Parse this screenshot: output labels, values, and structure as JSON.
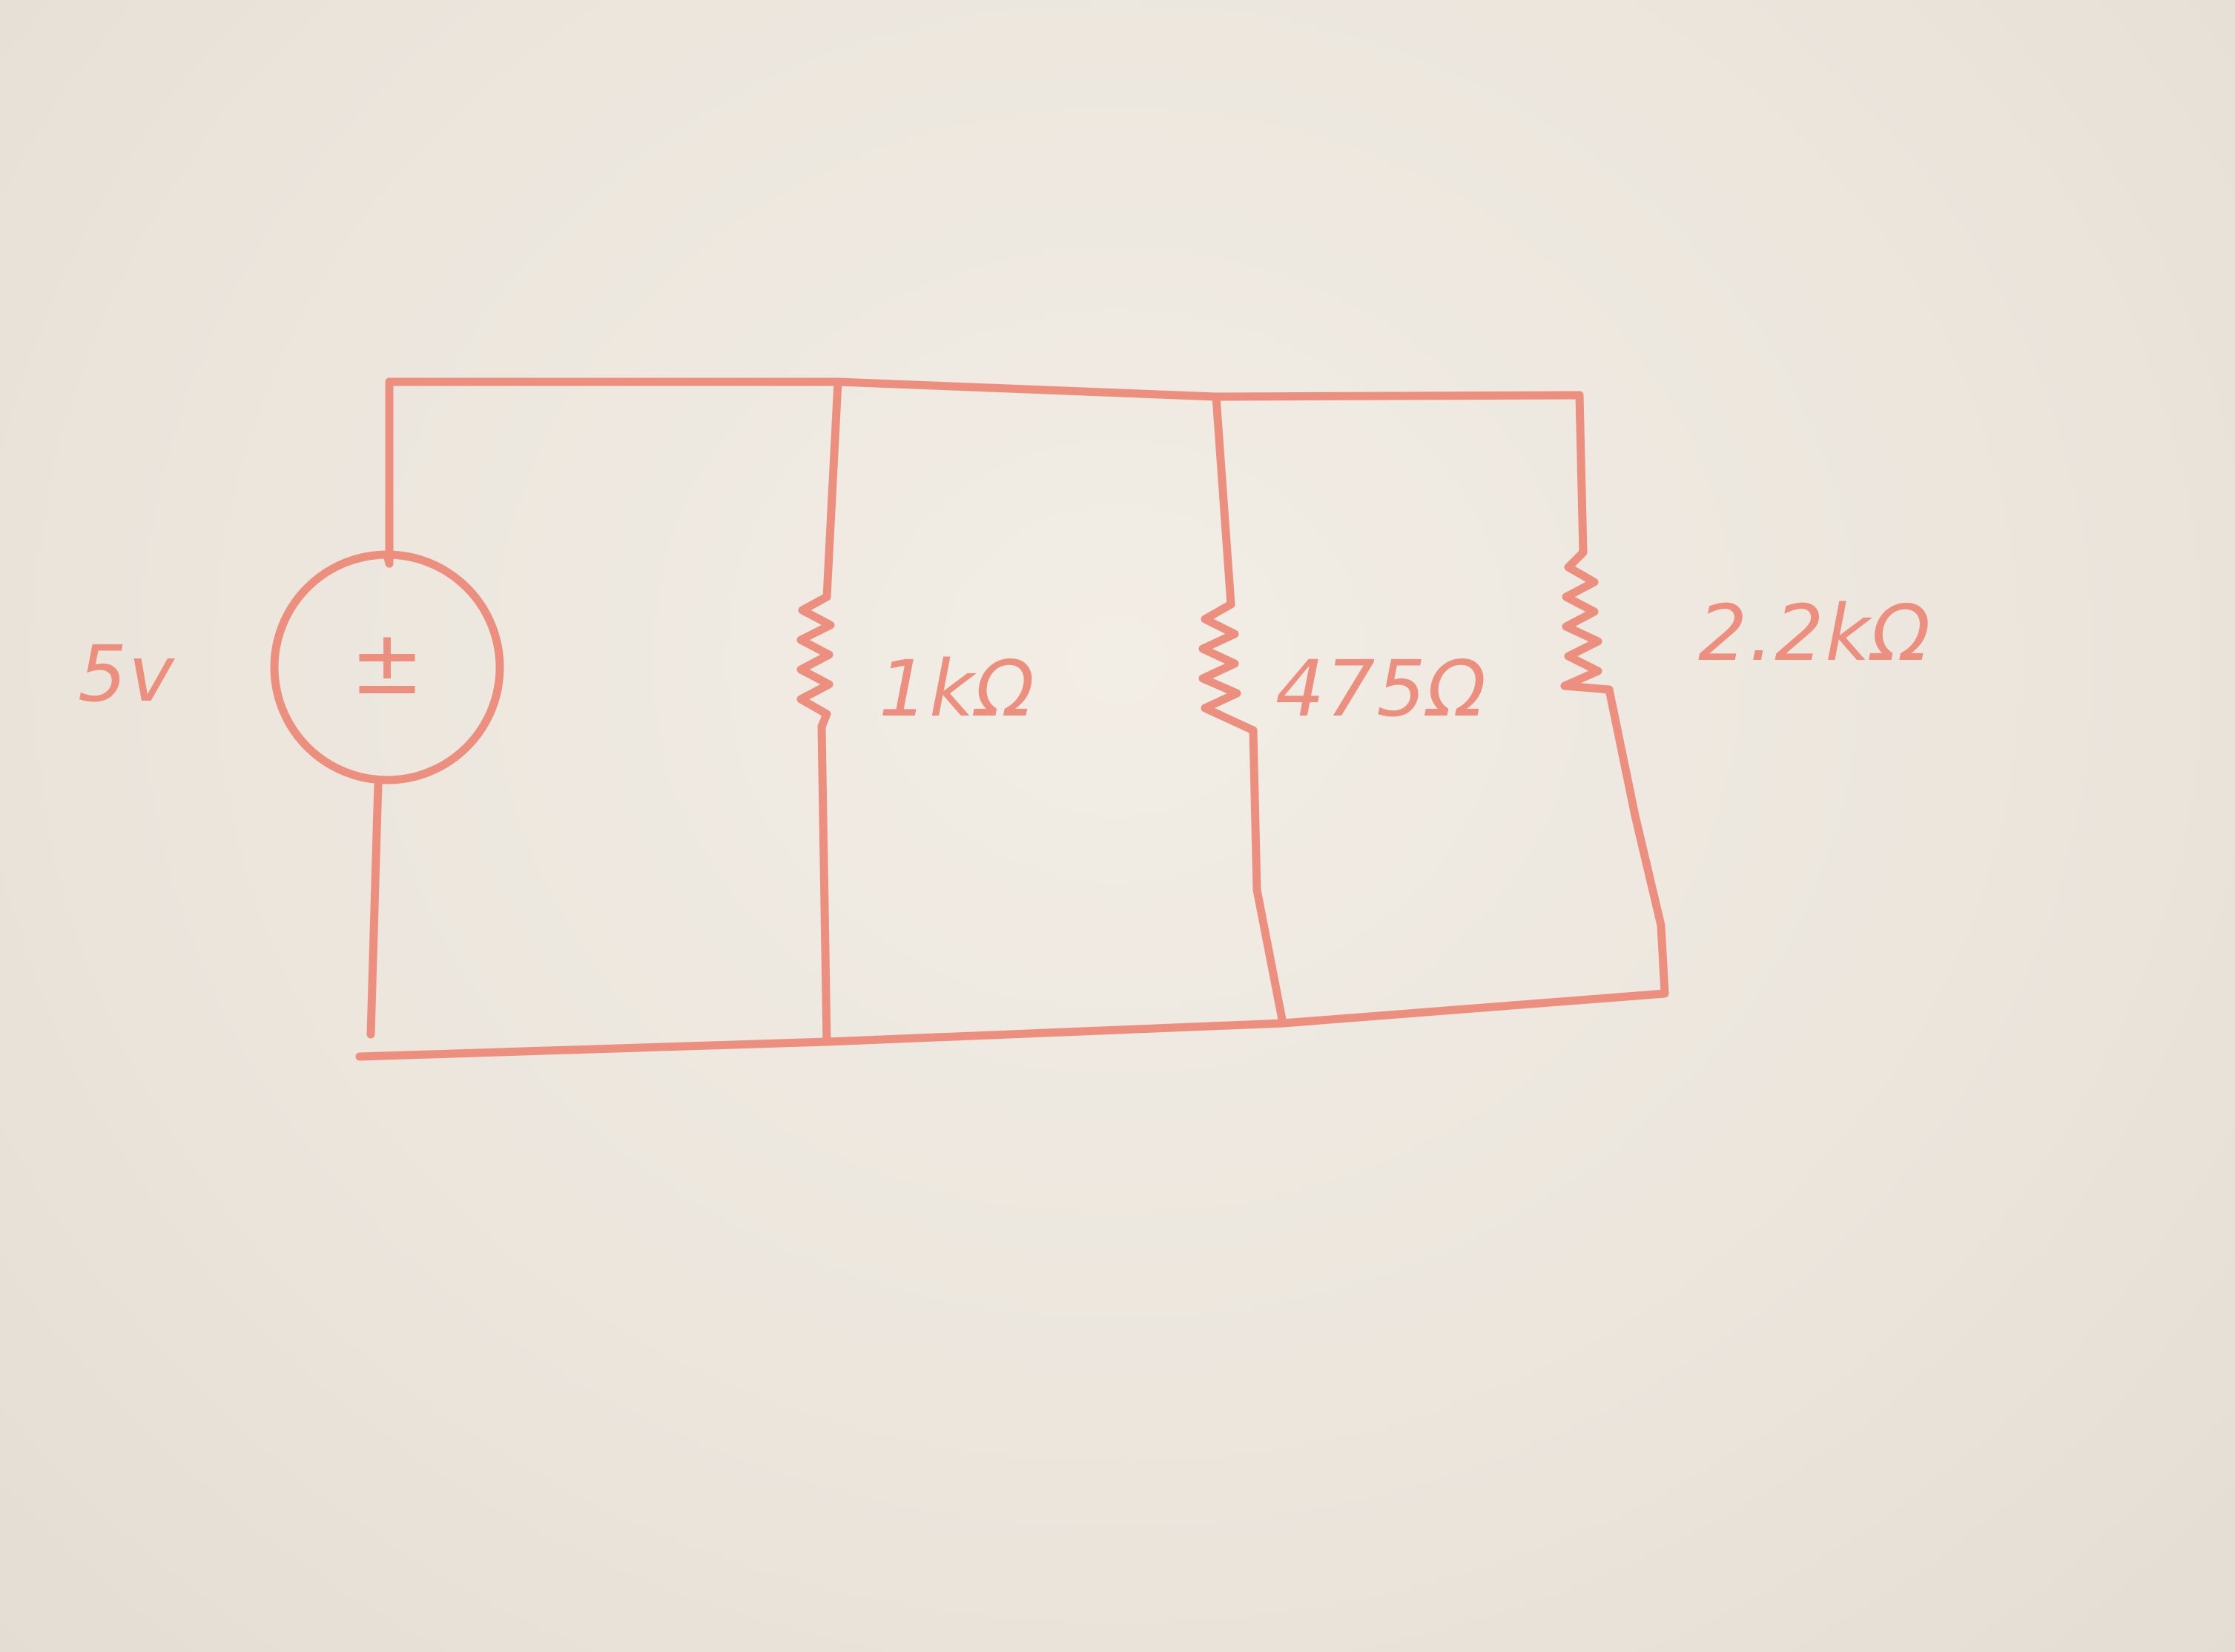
{
  "ink_color": "#ec8f7f",
  "source": {
    "label": "5v",
    "polarity_symbol": "±",
    "icon": "voltage-source-icon"
  },
  "resistors": [
    {
      "label": "1kΩ",
      "icon": "resistor-icon"
    },
    {
      "label": "475Ω",
      "icon": "resistor-icon"
    },
    {
      "label": "2.2kΩ",
      "icon": "resistor-icon"
    }
  ]
}
